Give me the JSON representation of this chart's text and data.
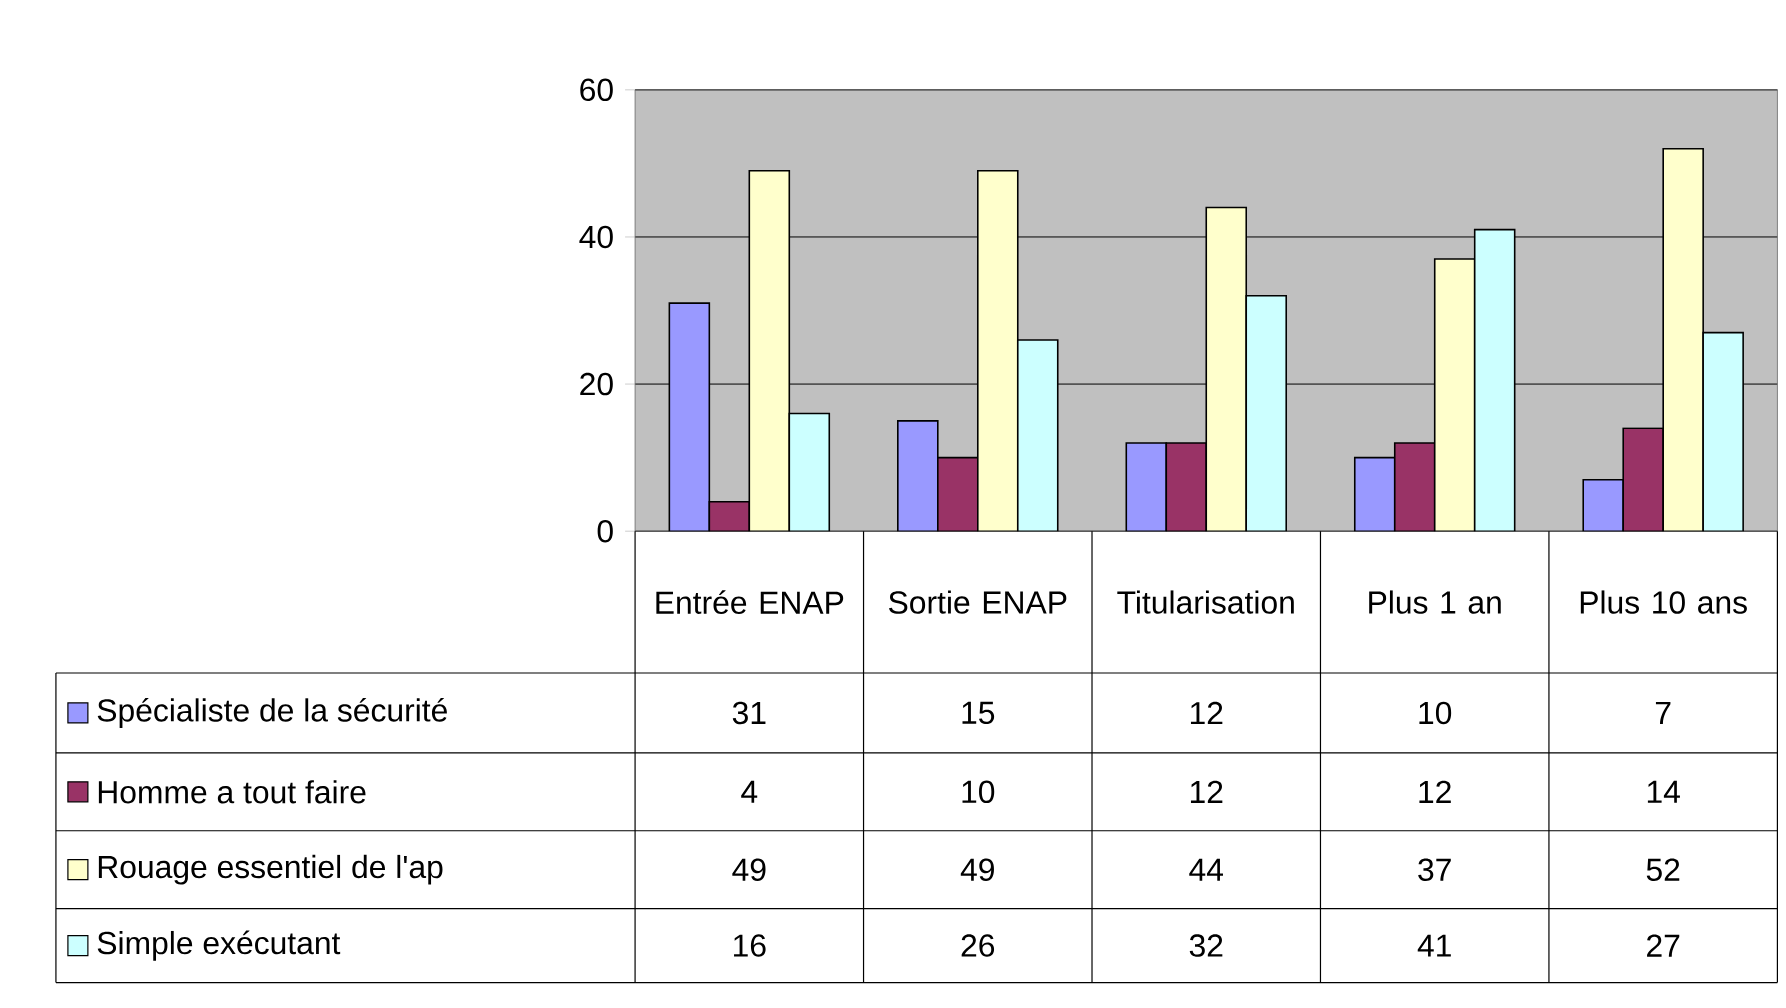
{
  "chart_data": {
    "type": "bar",
    "categories": [
      "Entrée ENAP",
      "Sortie ENAP",
      "Titularisation",
      "Plus 1 an",
      "Plus 10 ans"
    ],
    "series": [
      {
        "name": "Spécialiste de la sécurité",
        "color": "#9999ff",
        "values": [
          31,
          15,
          12,
          10,
          7
        ]
      },
      {
        "name": "Homme a tout faire",
        "color": "#993366",
        "values": [
          4,
          10,
          12,
          12,
          14
        ]
      },
      {
        "name": "Rouage essentiel de l'ap",
        "color": "#ffffcc",
        "values": [
          49,
          49,
          44,
          37,
          52
        ]
      },
      {
        "name": "Simple exécutant",
        "color": "#ccffff",
        "values": [
          16,
          26,
          32,
          41,
          27
        ]
      }
    ],
    "ylim": [
      0,
      60
    ],
    "yticks": [
      0,
      20,
      40,
      60
    ],
    "grid": "y",
    "data_labels": true,
    "legend": "bottom left"
  }
}
